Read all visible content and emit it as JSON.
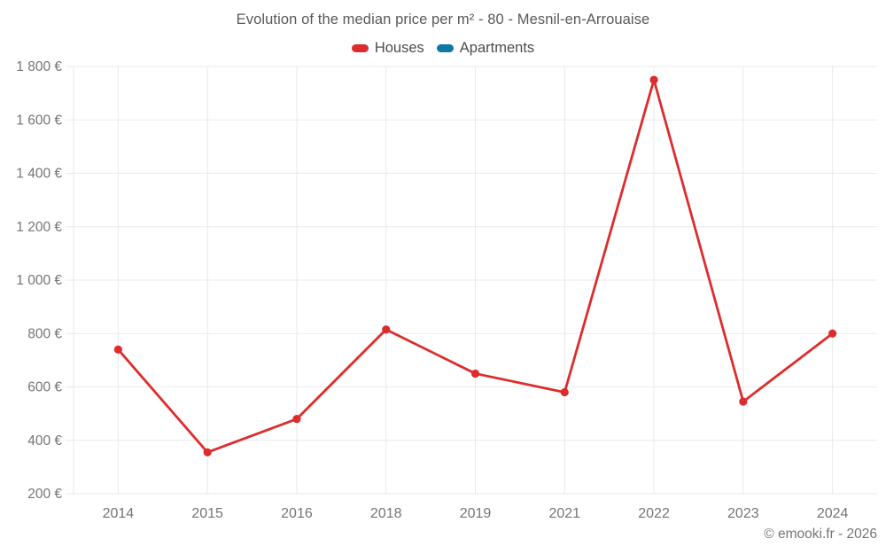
{
  "page": {
    "title": "Evolution of the median price per m² - 80 - Mesnil-en-Arrouaise",
    "footer": "© emooki.fr - 2026"
  },
  "legend": {
    "items": [
      {
        "label": "Houses",
        "color": "#dd2c2c"
      },
      {
        "label": "Apartments",
        "color": "#0f76a6"
      }
    ]
  },
  "colors": {
    "houses_series": "#dd2c2c",
    "apartments_series": "#0f76a6",
    "grid": "#e9e9e9",
    "axis_text": "#757575",
    "title_text": "#595959",
    "legend_text": "#4d4d4d",
    "background": "#ffffff"
  },
  "chart_data": {
    "type": "line",
    "title": "Evolution of the median price per m² - 80 - Mesnil-en-Arrouaise",
    "categories": [
      "2014",
      "2015",
      "2016",
      "2018",
      "2019",
      "2021",
      "2022",
      "2023",
      "2024"
    ],
    "series": [
      {
        "name": "Houses",
        "color": "#dd2c2c",
        "values": [
          740,
          355,
          480,
          815,
          650,
          580,
          1750,
          545,
          800
        ]
      },
      {
        "name": "Apartments",
        "color": "#0f76a6",
        "values": []
      }
    ],
    "xlabel": "",
    "ylabel": "",
    "ylim": [
      200,
      1800
    ],
    "ytick_step": 200,
    "ytick_suffix": " €",
    "thousands_separator": " ",
    "grid": true,
    "legend_position": "top",
    "marker": "circle"
  }
}
